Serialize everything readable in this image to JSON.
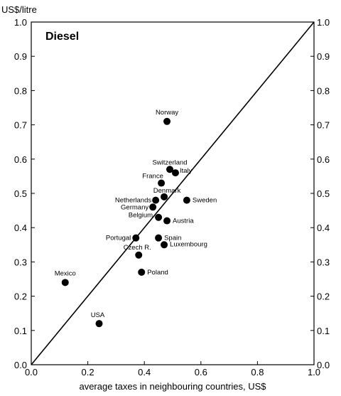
{
  "chart_data": {
    "type": "scatter",
    "title": "Diesel",
    "ylabel": "US$/litre",
    "xlabel": "average taxes in neighbouring countries, US$",
    "xlim": [
      0.0,
      1.0
    ],
    "ylim": [
      0.0,
      1.0
    ],
    "x_ticks": [
      "0.0",
      "0.2",
      "0.4",
      "0.6",
      "0.8",
      "1.0"
    ],
    "y_ticks": [
      "0.0",
      "0.1",
      "0.2",
      "0.3",
      "0.4",
      "0.5",
      "0.6",
      "0.7",
      "0.8",
      "0.9",
      "1.0"
    ],
    "grid": false,
    "reference_line": {
      "type": "diagonal",
      "from": [
        0.0,
        0.0
      ],
      "to": [
        1.0,
        1.0
      ]
    },
    "points": [
      {
        "label": "Norway",
        "x": 0.48,
        "y": 0.71
      },
      {
        "label": "Switzerland",
        "x": 0.49,
        "y": 0.57
      },
      {
        "label": "Italy",
        "x": 0.51,
        "y": 0.56
      },
      {
        "label": "France",
        "x": 0.46,
        "y": 0.53
      },
      {
        "label": "Denmark",
        "x": 0.47,
        "y": 0.49
      },
      {
        "label": "Sweden",
        "x": 0.55,
        "y": 0.48
      },
      {
        "label": "Netherlands",
        "x": 0.44,
        "y": 0.48
      },
      {
        "label": "Germany",
        "x": 0.43,
        "y": 0.46
      },
      {
        "label": "Belgium",
        "x": 0.45,
        "y": 0.43
      },
      {
        "label": "Austria",
        "x": 0.48,
        "y": 0.42
      },
      {
        "label": "Portugal",
        "x": 0.37,
        "y": 0.37
      },
      {
        "label": "Spain",
        "x": 0.45,
        "y": 0.37
      },
      {
        "label": "Luxembourg",
        "x": 0.47,
        "y": 0.35
      },
      {
        "label": "Czech R.",
        "x": 0.38,
        "y": 0.32
      },
      {
        "label": "Poland",
        "x": 0.39,
        "y": 0.27
      },
      {
        "label": "Mexico",
        "x": 0.12,
        "y": 0.24
      },
      {
        "label": "USA",
        "x": 0.24,
        "y": 0.12
      }
    ]
  }
}
